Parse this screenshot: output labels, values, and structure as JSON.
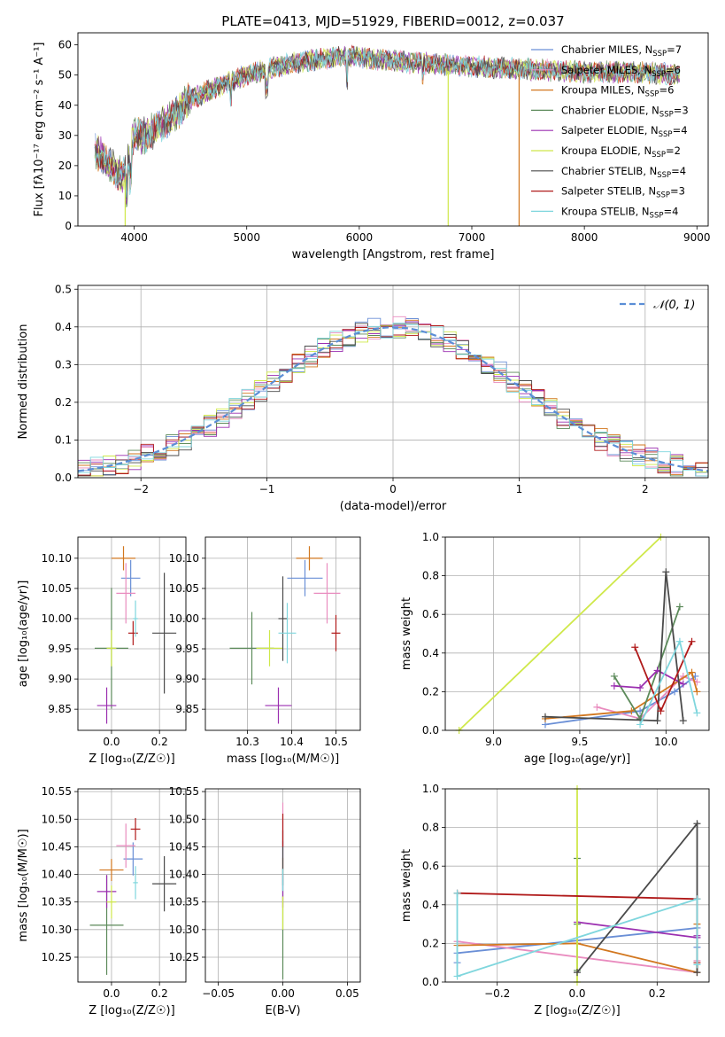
{
  "figure_title": "PLATE=0413, MJD=51929, FIBERID=0012, z=0.037",
  "legend_entries": [
    {
      "label": "Chabrier MILES, N",
      "sub": "SSP",
      "eq": "=7",
      "color": "#6a8fd6"
    },
    {
      "label": "Salpeter MILES, N",
      "sub": "SSP",
      "eq": "=6",
      "color": "#e98cbf"
    },
    {
      "label": "Kroupa MILES, N",
      "sub": "SSP",
      "eq": "=6",
      "color": "#d2771f"
    },
    {
      "label": "Chabrier ELODIE, N",
      "sub": "SSP",
      "eq": "=3",
      "color": "#5c8a5a"
    },
    {
      "label": "Salpeter ELODIE, N",
      "sub": "SSP",
      "eq": "=4",
      "color": "#9b2fb0"
    },
    {
      "label": "Kroupa ELODIE, N",
      "sub": "SSP",
      "eq": "=2",
      "color": "#cfe84a"
    },
    {
      "label": "Chabrier STELIB, N",
      "sub": "SSP",
      "eq": "=4",
      "color": "#4a4a4a"
    },
    {
      "label": "Salpeter STELIB, N",
      "sub": "SSP",
      "eq": "=3",
      "color": "#b01a1a"
    },
    {
      "label": "Kroupa STELIB, N",
      "sub": "SSP",
      "eq": "=4",
      "color": "#7fd6dd"
    }
  ],
  "chart_data": [
    {
      "id": "spectrum",
      "type": "line",
      "xlabel": "wavelength [Angstrom, rest frame]",
      "ylabel": "Flux [fλ10⁻¹⁷ erg cm⁻² s⁻¹ A⁻¹]",
      "xlim": [
        3500,
        9100
      ],
      "ylim": [
        0,
        64
      ],
      "xticks": [
        4000,
        5000,
        6000,
        7000,
        8000,
        9000
      ],
      "yticks": [
        0,
        10,
        20,
        30,
        40,
        50,
        60
      ],
      "grid": false,
      "legend": "right",
      "continuum": [
        [
          3650,
          25
        ],
        [
          3800,
          20
        ],
        [
          3900,
          16
        ],
        [
          3950,
          22
        ],
        [
          4000,
          30
        ],
        [
          4100,
          30
        ],
        [
          4300,
          35
        ],
        [
          4500,
          42
        ],
        [
          4800,
          47
        ],
        [
          5000,
          50
        ],
        [
          5200,
          52
        ],
        [
          5400,
          54
        ],
        [
          5600,
          55
        ],
        [
          5800,
          56
        ],
        [
          6000,
          56
        ],
        [
          6200,
          55
        ],
        [
          6500,
          54
        ],
        [
          7000,
          53
        ],
        [
          7500,
          52
        ],
        [
          8000,
          51
        ],
        [
          8500,
          51
        ],
        [
          8850,
          50
        ]
      ],
      "dropouts": [
        {
          "x": 3920,
          "color": "#cfe84a"
        },
        {
          "x": 6790,
          "color": "#cfe84a"
        },
        {
          "x": 7420,
          "color": "#d2771f"
        }
      ]
    },
    {
      "id": "residuals",
      "type": "step",
      "xlabel": "(data-model)/error",
      "ylabel": "Normed distribution",
      "xlim": [
        -2.5,
        2.5
      ],
      "ylim": [
        0,
        0.51
      ],
      "xticks": [
        -2,
        -1,
        0,
        1,
        2
      ],
      "yticks": [
        0.0,
        0.1,
        0.2,
        0.3,
        0.4,
        0.5
      ],
      "grid": true,
      "legend": "top-right",
      "reference": {
        "label": "𝒩(0, 1)",
        "color": "#5b8ed6"
      }
    },
    {
      "id": "age_vs_Z",
      "type": "errorbar",
      "xlabel": "Z [log₁₀(Z/Z☉)]",
      "ylabel": "age  [log₁₀(age/yr)]",
      "xlim": [
        -0.14,
        0.31
      ],
      "ylim": [
        9.815,
        10.135
      ],
      "xticks": [
        0.0,
        0.2
      ],
      "yticks": [
        9.85,
        9.9,
        9.95,
        10.0,
        10.05,
        10.1
      ],
      "points": [
        {
          "x": 0.08,
          "y": 10.067,
          "xerr": 0.04,
          "yerr": 0.03,
          "color": "#6a8fd6"
        },
        {
          "x": 0.06,
          "y": 10.042,
          "xerr": 0.04,
          "yerr": 0.05,
          "color": "#e98cbf"
        },
        {
          "x": 0.05,
          "y": 10.1,
          "xerr": 0.05,
          "yerr": 0.02,
          "color": "#d2771f"
        },
        {
          "x": 0.0,
          "y": 9.951,
          "xerr": 0.07,
          "yerr": 0.1,
          "color": "#5c8a5a"
        },
        {
          "x": -0.02,
          "y": 9.856,
          "xerr": 0.04,
          "yerr": 0.03,
          "color": "#9b2fb0"
        },
        {
          "x": 0.0,
          "y": 9.951,
          "xerr": 0.02,
          "yerr": 0.03,
          "color": "#cfe84a"
        },
        {
          "x": 0.22,
          "y": 9.976,
          "xerr": 0.05,
          "yerr": 0.1,
          "color": "#4a4a4a"
        },
        {
          "x": 0.09,
          "y": 9.976,
          "xerr": 0.02,
          "yerr": 0.02,
          "color": "#b01a1a"
        },
        {
          "x": 0.1,
          "y": 10.0,
          "xerr": 0.01,
          "yerr": 0.03,
          "color": "#7fd6dd"
        }
      ]
    },
    {
      "id": "age_vs_mass",
      "type": "errorbar",
      "xlabel": "mass [log₁₀(M/M☉)]",
      "ylabel": "",
      "xlim": [
        10.205,
        10.555
      ],
      "ylim": [
        9.815,
        10.135
      ],
      "xticks": [
        10.3,
        10.4,
        10.5
      ],
      "yticks": [
        9.85,
        9.9,
        9.95,
        10.0,
        10.05,
        10.1
      ],
      "points": [
        {
          "x": 10.43,
          "y": 10.067,
          "xerr": 0.04,
          "yerr": 0.03,
          "color": "#6a8fd6"
        },
        {
          "x": 10.48,
          "y": 10.042,
          "xerr": 0.03,
          "yerr": 0.05,
          "color": "#e98cbf"
        },
        {
          "x": 10.44,
          "y": 10.1,
          "xerr": 0.03,
          "yerr": 0.02,
          "color": "#d2771f"
        },
        {
          "x": 10.31,
          "y": 9.951,
          "xerr": 0.05,
          "yerr": 0.06,
          "color": "#5c8a5a"
        },
        {
          "x": 10.37,
          "y": 9.856,
          "xerr": 0.03,
          "yerr": 0.03,
          "color": "#9b2fb0"
        },
        {
          "x": 10.35,
          "y": 9.951,
          "xerr": 0.03,
          "yerr": 0.03,
          "color": "#cfe84a"
        },
        {
          "x": 10.38,
          "y": 10.0,
          "xerr": 0.01,
          "yerr": 0.07,
          "color": "#4a4a4a"
        },
        {
          "x": 10.5,
          "y": 9.976,
          "xerr": 0.01,
          "yerr": 0.03,
          "color": "#b01a1a"
        },
        {
          "x": 10.39,
          "y": 9.976,
          "xerr": 0.02,
          "yerr": 0.05,
          "color": "#7fd6dd"
        }
      ]
    },
    {
      "id": "weight_vs_age",
      "type": "line",
      "xlabel": "age  [log₁₀(age/yr)]",
      "ylabel": "mass weight",
      "xlim": [
        8.72,
        10.25
      ],
      "ylim": [
        0,
        1.0
      ],
      "xticks": [
        9.0,
        9.5,
        10.0
      ],
      "yticks": [
        0.0,
        0.2,
        0.4,
        0.6,
        0.8,
        1.0
      ],
      "grid": true,
      "series": [
        {
          "color": "#6a8fd6",
          "x": [
            9.3,
            9.85,
            10.05,
            10.17
          ],
          "y": [
            0.03,
            0.1,
            0.2,
            0.28
          ]
        },
        {
          "color": "#e98cbf",
          "x": [
            9.6,
            9.85,
            10.1,
            10.18
          ],
          "y": [
            0.12,
            0.06,
            0.28,
            0.25
          ]
        },
        {
          "color": "#d2771f",
          "x": [
            9.3,
            9.8,
            10.15,
            10.18
          ],
          "y": [
            0.06,
            0.1,
            0.3,
            0.2
          ]
        },
        {
          "color": "#5c8a5a",
          "x": [
            9.7,
            9.85,
            10.08
          ],
          "y": [
            0.28,
            0.06,
            0.64
          ]
        },
        {
          "color": "#9b2fb0",
          "x": [
            9.7,
            9.85,
            9.95,
            10.1
          ],
          "y": [
            0.23,
            0.22,
            0.31,
            0.24
          ]
        },
        {
          "color": "#cfe84a",
          "x": [
            8.8,
            9.97
          ],
          "y": [
            0.0,
            1.0
          ]
        },
        {
          "color": "#4a4a4a",
          "x": [
            9.3,
            9.95,
            10.0,
            10.1
          ],
          "y": [
            0.07,
            0.05,
            0.82,
            0.05
          ]
        },
        {
          "color": "#b01a1a",
          "x": [
            9.82,
            9.97,
            10.15
          ],
          "y": [
            0.43,
            0.1,
            0.46
          ]
        },
        {
          "color": "#7fd6dd",
          "x": [
            9.85,
            10.08,
            10.18
          ],
          "y": [
            0.03,
            0.46,
            0.09
          ]
        }
      ]
    },
    {
      "id": "mass_vs_Z",
      "type": "errorbar",
      "xlabel": "Z [log₁₀(Z/Z☉)]",
      "ylabel": "mass [log₁₀(M/M☉)]",
      "xlim": [
        -0.14,
        0.31
      ],
      "ylim": [
        10.205,
        10.555
      ],
      "xticks": [
        0.0,
        0.2
      ],
      "yticks": [
        10.25,
        10.3,
        10.35,
        10.4,
        10.45,
        10.5,
        10.55
      ],
      "points": [
        {
          "x": 0.09,
          "y": 10.428,
          "xerr": 0.04,
          "yerr": 0.03,
          "color": "#6a8fd6"
        },
        {
          "x": 0.06,
          "y": 10.452,
          "xerr": 0.04,
          "yerr": 0.04,
          "color": "#e98cbf"
        },
        {
          "x": 0.0,
          "y": 10.408,
          "xerr": 0.05,
          "yerr": 0.02,
          "color": "#d2771f"
        },
        {
          "x": -0.02,
          "y": 10.308,
          "xerr": 0.07,
          "yerr": 0.09,
          "color": "#5c8a5a"
        },
        {
          "x": -0.02,
          "y": 10.369,
          "xerr": 0.04,
          "yerr": 0.03,
          "color": "#9b2fb0"
        },
        {
          "x": 0.0,
          "y": 10.35,
          "xerr": 0.02,
          "yerr": 0.03,
          "color": "#cfe84a"
        },
        {
          "x": 0.22,
          "y": 10.383,
          "xerr": 0.05,
          "yerr": 0.05,
          "color": "#4a4a4a"
        },
        {
          "x": 0.1,
          "y": 10.482,
          "xerr": 0.02,
          "yerr": 0.02,
          "color": "#b01a1a"
        },
        {
          "x": 0.1,
          "y": 10.385,
          "xerr": 0.01,
          "yerr": 0.03,
          "color": "#7fd6dd"
        }
      ]
    },
    {
      "id": "mass_vs_ebv",
      "type": "errorbar",
      "xlabel": "E(B-V)",
      "ylabel": "",
      "xlim": [
        -0.06,
        0.06
      ],
      "ylim": [
        10.205,
        10.555
      ],
      "xticks": [
        -0.05,
        0.0,
        0.05
      ],
      "yticks": [
        10.25,
        10.3,
        10.35,
        10.4,
        10.45,
        10.5,
        10.55
      ],
      "points": [
        {
          "x": 0.0,
          "y": 10.43,
          "xerr": 0.0,
          "yerr": 0.03,
          "color": "#6a8fd6"
        },
        {
          "x": 0.0,
          "y": 10.47,
          "xerr": 0.0,
          "yerr": 0.06,
          "color": "#e98cbf"
        },
        {
          "x": 0.0,
          "y": 10.41,
          "xerr": 0.0,
          "yerr": 0.02,
          "color": "#d2771f"
        },
        {
          "x": 0.0,
          "y": 10.3,
          "xerr": 0.0,
          "yerr": 0.09,
          "color": "#5c8a5a"
        },
        {
          "x": 0.0,
          "y": 10.37,
          "xerr": 0.0,
          "yerr": 0.03,
          "color": "#9b2fb0"
        },
        {
          "x": 0.0,
          "y": 10.33,
          "xerr": 0.0,
          "yerr": 0.03,
          "color": "#cfe84a"
        },
        {
          "x": 0.0,
          "y": 10.43,
          "xerr": 0.0,
          "yerr": 0.05,
          "color": "#4a4a4a"
        },
        {
          "x": 0.0,
          "y": 10.48,
          "xerr": 0.0,
          "yerr": 0.03,
          "color": "#b01a1a"
        },
        {
          "x": 0.0,
          "y": 10.39,
          "xerr": 0.0,
          "yerr": 0.02,
          "color": "#7fd6dd"
        }
      ]
    },
    {
      "id": "weight_vs_Z",
      "type": "line",
      "xlabel": "Z [log₁₀(Z/Z☉)]",
      "ylabel": "mass weight",
      "xlim": [
        -0.33,
        0.33
      ],
      "ylim": [
        0,
        1.0
      ],
      "xticks": [
        -0.2,
        0.0,
        0.2
      ],
      "yticks": [
        0.0,
        0.2,
        0.4,
        0.6,
        0.8,
        1.0
      ],
      "grid": true,
      "series": [
        {
          "color": "#6a8fd6",
          "x": [
            -0.3,
            -0.3,
            0.3,
            0.3
          ],
          "y": [
            0.1,
            0.15,
            0.28,
            0.18
          ]
        },
        {
          "color": "#e98cbf",
          "x": [
            -0.3,
            0.3,
            0.3
          ],
          "y": [
            0.21,
            0.05,
            0.11
          ]
        },
        {
          "color": "#d2771f",
          "x": [
            -0.3,
            0.0,
            0.3,
            0.3
          ],
          "y": [
            0.19,
            0.2,
            0.05,
            0.3
          ]
        },
        {
          "color": "#5c8a5a",
          "x": [
            0.0,
            0.0,
            0.0
          ],
          "y": [
            0.06,
            0.64,
            0.3
          ]
        },
        {
          "color": "#9b2fb0",
          "x": [
            0.0,
            0.3,
            0.3
          ],
          "y": [
            0.31,
            0.23,
            0.24
          ]
        },
        {
          "color": "#cfe84a",
          "x": [
            0.0,
            0.0
          ],
          "y": [
            0.0,
            1.0
          ]
        },
        {
          "color": "#4a4a4a",
          "x": [
            0.0,
            0.3,
            0.3
          ],
          "y": [
            0.05,
            0.82,
            0.05
          ]
        },
        {
          "color": "#b01a1a",
          "x": [
            -0.3,
            0.3,
            0.3
          ],
          "y": [
            0.46,
            0.43,
            0.1
          ]
        },
        {
          "color": "#7fd6dd",
          "x": [
            -0.3,
            -0.3,
            0.3,
            0.3
          ],
          "y": [
            0.46,
            0.03,
            0.43,
            0.09
          ]
        }
      ]
    }
  ]
}
